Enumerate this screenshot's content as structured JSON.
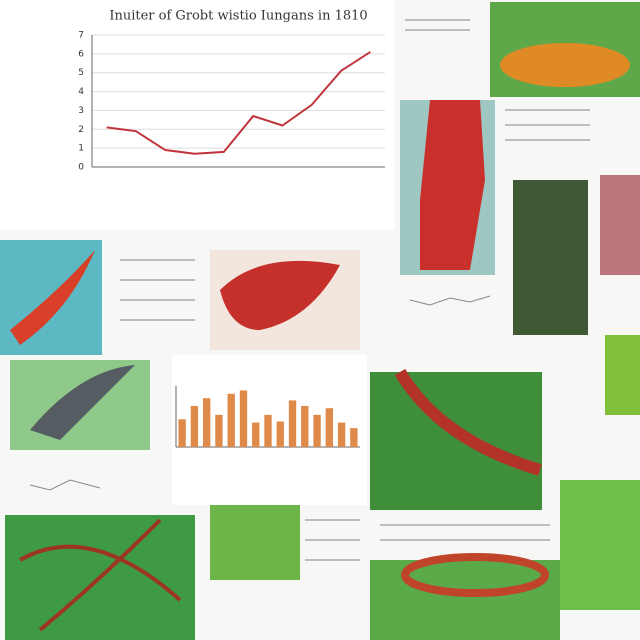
{
  "chart_data": [
    {
      "type": "line",
      "title": "Inuiter of Grobt wistio Iungans in 1810",
      "categories": [
        null,
        null,
        null,
        null,
        null,
        null,
        null,
        null,
        null,
        null
      ],
      "values": [
        2.1,
        1.9,
        0.9,
        0.7,
        0.8,
        2.7,
        2.2,
        3.3,
        5.1,
        6.1
      ],
      "color": "#c0353a",
      "ylim": [
        0,
        7
      ],
      "yticks": [
        0,
        1,
        2,
        3,
        4,
        5,
        6,
        7
      ],
      "grid": true
    },
    {
      "type": "bar",
      "categories": [
        null,
        null,
        null,
        null,
        null,
        null,
        null,
        null,
        null,
        null,
        null,
        null,
        null,
        null,
        null
      ],
      "values": [
        5,
        7.4,
        8.8,
        5.8,
        9.6,
        10.2,
        4.4,
        5.8,
        4.6,
        8.4,
        7.4,
        5.8,
        7,
        4.4,
        3.4
      ],
      "color": "#e08a4a",
      "ylim": [
        0,
        11
      ],
      "grid": true
    }
  ]
}
